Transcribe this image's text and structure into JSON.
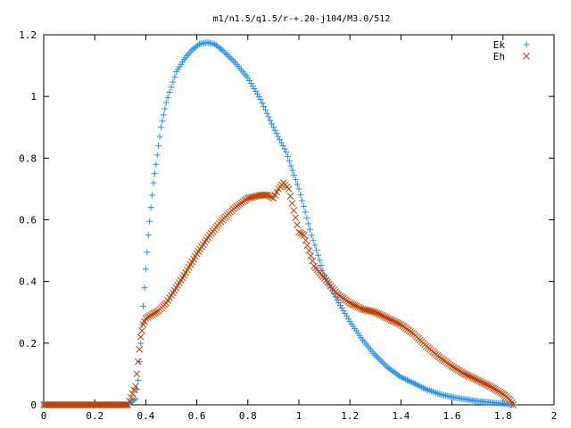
{
  "chart_data": {
    "type": "scatter",
    "title": "m1/n1.5/q1.5/r-+.20-j104/M3.0/512",
    "xlabel": "",
    "ylabel": "",
    "xlim": [
      0,
      2
    ],
    "ylim": [
      0,
      1.2
    ],
    "xticks": [
      "0",
      "0.2",
      "0.4",
      "0.6",
      "0.8",
      "1",
      "1.2",
      "1.4",
      "1.6",
      "1.8",
      "2"
    ],
    "yticks": [
      "0",
      "0.2",
      "0.4",
      "0.6",
      "0.8",
      "1",
      "1.2"
    ],
    "grid": false,
    "legend_position": "top-right",
    "series": [
      {
        "name": "Ek",
        "marker": "plus",
        "color": "#1E90FF",
        "points": [
          [
            0,
            0
          ],
          [
            0.05,
            0
          ],
          [
            0.1,
            0
          ],
          [
            0.15,
            0
          ],
          [
            0.2,
            0
          ],
          [
            0.25,
            0
          ],
          [
            0.3,
            0
          ],
          [
            0.33,
            0
          ],
          [
            0.36,
            0.02
          ],
          [
            0.37,
            0.08
          ],
          [
            0.38,
            0.2
          ],
          [
            0.39,
            0.32
          ],
          [
            0.4,
            0.44
          ],
          [
            0.41,
            0.55
          ],
          [
            0.42,
            0.64
          ],
          [
            0.43,
            0.72
          ],
          [
            0.44,
            0.78
          ],
          [
            0.45,
            0.84
          ],
          [
            0.46,
            0.9
          ],
          [
            0.47,
            0.94
          ],
          [
            0.48,
            0.98
          ],
          [
            0.5,
            1.03
          ],
          [
            0.52,
            1.08
          ],
          [
            0.55,
            1.12
          ],
          [
            0.58,
            1.15
          ],
          [
            0.61,
            1.17
          ],
          [
            0.64,
            1.175
          ],
          [
            0.67,
            1.17
          ],
          [
            0.7,
            1.15
          ],
          [
            0.75,
            1.11
          ],
          [
            0.8,
            1.06
          ],
          [
            0.85,
            0.99
          ],
          [
            0.9,
            0.9
          ],
          [
            0.95,
            0.82
          ],
          [
            1.0,
            0.7
          ],
          [
            1.05,
            0.55
          ],
          [
            1.1,
            0.42
          ],
          [
            1.15,
            0.34
          ],
          [
            1.2,
            0.27
          ],
          [
            1.25,
            0.21
          ],
          [
            1.3,
            0.16
          ],
          [
            1.35,
            0.12
          ],
          [
            1.4,
            0.09
          ],
          [
            1.45,
            0.07
          ],
          [
            1.5,
            0.05
          ],
          [
            1.55,
            0.035
          ],
          [
            1.6,
            0.025
          ],
          [
            1.65,
            0.018
          ],
          [
            1.7,
            0.012
          ],
          [
            1.75,
            0.008
          ],
          [
            1.8,
            0.004
          ],
          [
            1.84,
            0.0
          ]
        ]
      },
      {
        "name": "Eh",
        "marker": "cross",
        "color": "#C04000",
        "points": [
          [
            0,
            0
          ],
          [
            0.05,
            0
          ],
          [
            0.1,
            0
          ],
          [
            0.15,
            0
          ],
          [
            0.2,
            0
          ],
          [
            0.25,
            0
          ],
          [
            0.3,
            0
          ],
          [
            0.33,
            0
          ],
          [
            0.36,
            0.06
          ],
          [
            0.37,
            0.14
          ],
          [
            0.38,
            0.22
          ],
          [
            0.39,
            0.26
          ],
          [
            0.4,
            0.28
          ],
          [
            0.42,
            0.29
          ],
          [
            0.45,
            0.305
          ],
          [
            0.48,
            0.33
          ],
          [
            0.5,
            0.355
          ],
          [
            0.55,
            0.42
          ],
          [
            0.6,
            0.49
          ],
          [
            0.65,
            0.55
          ],
          [
            0.7,
            0.6
          ],
          [
            0.75,
            0.64
          ],
          [
            0.8,
            0.67
          ],
          [
            0.85,
            0.68
          ],
          [
            0.88,
            0.68
          ],
          [
            0.9,
            0.67
          ],
          [
            0.92,
            0.7
          ],
          [
            0.94,
            0.72
          ],
          [
            0.96,
            0.7
          ],
          [
            0.98,
            0.63
          ],
          [
            1.0,
            0.56
          ],
          [
            1.02,
            0.55
          ],
          [
            1.04,
            0.5
          ],
          [
            1.06,
            0.45
          ],
          [
            1.1,
            0.41
          ],
          [
            1.15,
            0.36
          ],
          [
            1.2,
            0.33
          ],
          [
            1.25,
            0.31
          ],
          [
            1.3,
            0.3
          ],
          [
            1.35,
            0.28
          ],
          [
            1.4,
            0.26
          ],
          [
            1.45,
            0.23
          ],
          [
            1.5,
            0.19
          ],
          [
            1.55,
            0.155
          ],
          [
            1.6,
            0.125
          ],
          [
            1.65,
            0.1
          ],
          [
            1.7,
            0.08
          ],
          [
            1.75,
            0.06
          ],
          [
            1.8,
            0.035
          ],
          [
            1.83,
            0.015
          ],
          [
            1.84,
            0.0
          ]
        ]
      }
    ]
  }
}
